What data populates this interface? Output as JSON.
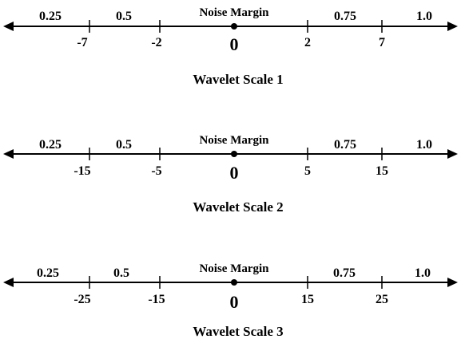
{
  "scales": [
    {
      "caption": "Wavelet Scale 1",
      "noise_margin_label": "Noise Margin",
      "zero_label": "0",
      "above_labels": [
        "0.25",
        "0.5",
        "0.75",
        "1.0"
      ],
      "tick_labels": [
        "-7",
        "-2",
        "2",
        "7"
      ]
    },
    {
      "caption": "Wavelet Scale 2",
      "noise_margin_label": "Noise Margin",
      "zero_label": "0",
      "above_labels": [
        "0.25",
        "0.5",
        "0.75",
        "1.0"
      ],
      "tick_labels": [
        "-15",
        "-5",
        "5",
        "15"
      ]
    },
    {
      "caption": "Wavelet Scale 3",
      "noise_margin_label": "Noise Margin",
      "zero_label": "0",
      "above_labels": [
        "0.25",
        "0.5",
        "0.75",
        "1.0"
      ],
      "tick_labels": [
        "-25",
        "-15",
        "15",
        "25"
      ]
    }
  ],
  "colors": {
    "line": "#000000",
    "background": "#ffffff"
  }
}
